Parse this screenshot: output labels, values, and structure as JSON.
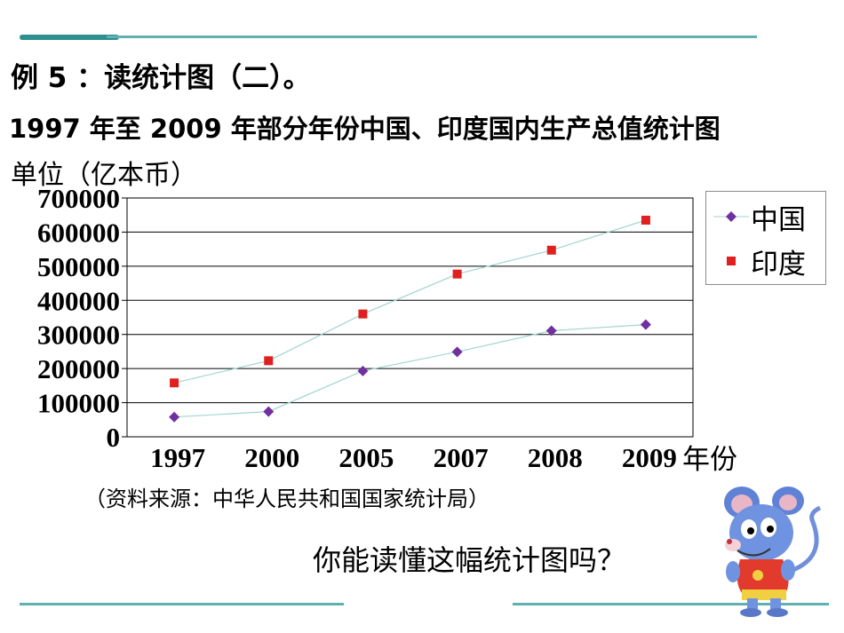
{
  "slide": {
    "example_title": "例 5 ：读统计图（二）。",
    "chart_title": "1997 年至 2009 年部分年份中国、印度国内生产总值统计图",
    "unit_label": "单位（亿本币）",
    "source_note": "（资料来源：中华人民共和国国家统计局）",
    "question": "你能读懂这幅统计图吗？"
  },
  "colors": {
    "accent_teal": "#2e8f8f",
    "china_marker": "#7030a0",
    "india_marker": "#e02020",
    "trend_line": "#9fd6cf"
  },
  "chart_data": {
    "type": "line",
    "title": "1997 年至 2009 年部分年份中国、印度国内生产总值统计图",
    "xlabel": "年份",
    "ylabel": "单位（亿本币）",
    "categories": [
      "1997",
      "2000",
      "2005",
      "2007",
      "2008",
      "2009"
    ],
    "ylim": [
      0,
      700000
    ],
    "yticks": [
      "0",
      "100000",
      "200000",
      "300000",
      "400000",
      "500000",
      "600000",
      "700000"
    ],
    "grid": true,
    "legend_position": "right",
    "series": [
      {
        "name": "中国",
        "values": [
          58000,
          74000,
          193000,
          249000,
          311000,
          329000
        ],
        "marker": "diamond",
        "color": "#7030a0"
      },
      {
        "name": "印度",
        "values": [
          158000,
          223000,
          360000,
          477000,
          547000,
          635000
        ],
        "marker": "square",
        "color": "#e02020"
      }
    ]
  },
  "mascot": {
    "icon": "cartoon-blue-mouse"
  }
}
